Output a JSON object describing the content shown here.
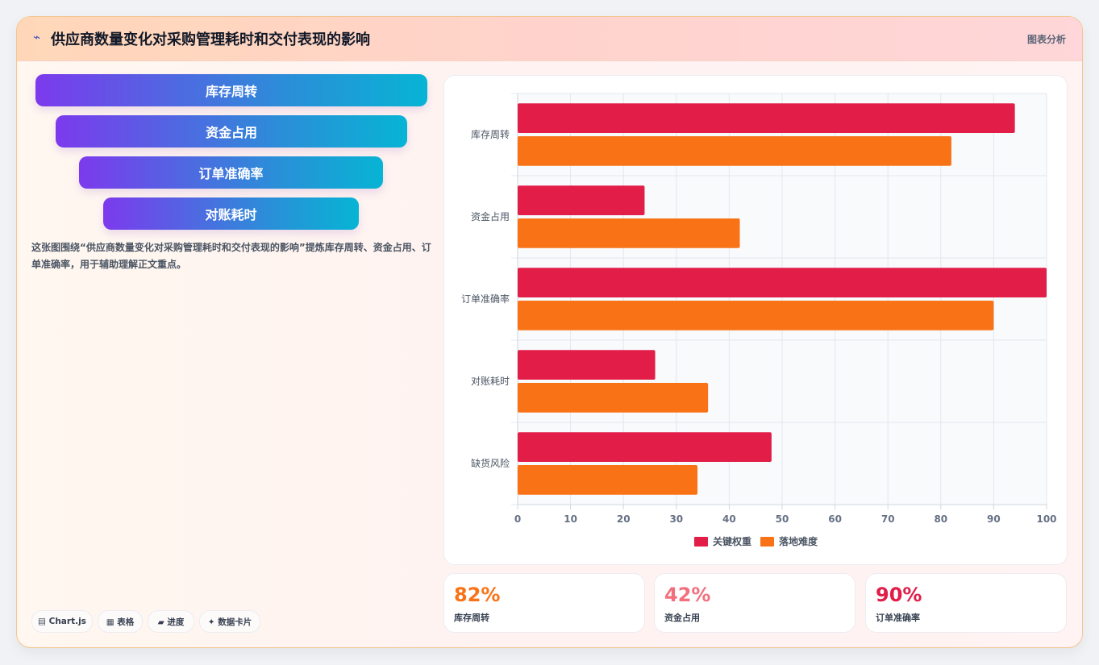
{
  "header": {
    "icon": "⌁",
    "title": "供应商数量变化对采购管理耗时和交付表现的影响",
    "tag": "图表分析"
  },
  "funnel": {
    "steps": [
      "库存周转",
      "资金占用",
      "订单准确率",
      "对账耗时"
    ]
  },
  "description": "这张图围绕“供应商数量变化对采购管理耗时和交付表现的影响”提炼库存周转、资金占用、订单准确率，用于辅助理解正文重点。",
  "chips": [
    "▤ Chart.js",
    "▦ 表格",
    "▰ 进度",
    "✦ 数据卡片"
  ],
  "chip_icons": [
    "chart-icon",
    "table-icon",
    "progress-icon",
    "sparkle-icon"
  ],
  "kpis": [
    {
      "value": "82%",
      "label": "库存周转",
      "color": "#f97316"
    },
    {
      "value": "42%",
      "label": "资金占用",
      "color": "#f2707e"
    },
    {
      "value": "90%",
      "label": "订单准确率",
      "color": "#e11d48"
    }
  ],
  "chart_data": {
    "type": "bar",
    "orientation": "horizontal",
    "categories": [
      "库存周转",
      "资金占用",
      "订单准确率",
      "对账耗时",
      "缺货风险"
    ],
    "series": [
      {
        "name": "关键权重",
        "color": "#e11d48",
        "values": [
          94,
          24,
          100,
          26,
          48
        ]
      },
      {
        "name": "落地难度",
        "color": "#f97316",
        "values": [
          82,
          42,
          90,
          36,
          34
        ]
      }
    ],
    "xlim": [
      0,
      100
    ],
    "xticks": [
      0,
      10,
      20,
      30,
      40,
      50,
      60,
      70,
      80,
      90,
      100
    ],
    "grid": true,
    "legend_position": "bottom"
  }
}
